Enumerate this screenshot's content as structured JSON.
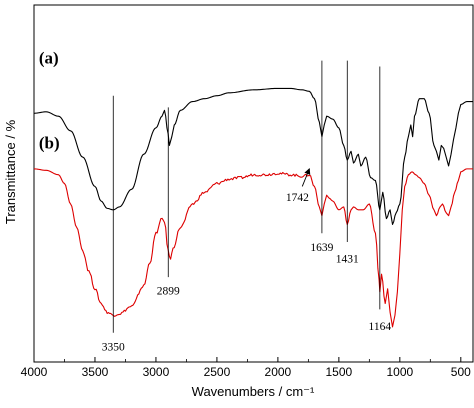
{
  "chart_data": {
    "type": "line",
    "xlabel": "Wavenumbers / cm⁻¹",
    "ylabel": "Transmittance / %",
    "xlim": [
      4000,
      400
    ],
    "x_reversed": true,
    "x_ticks": [
      4000,
      3500,
      3000,
      2500,
      2000,
      1500,
      1000,
      500
    ],
    "x_tick_labels": [
      "4000",
      "3500",
      "3000",
      "2500",
      "2000",
      "1500",
      "1000",
      "500"
    ],
    "y_tick_labels_shown": false,
    "grid": false,
    "series": [
      {
        "name": "(a)",
        "color": "#000000",
        "points": [
          [
            4000,
            63
          ],
          [
            3900,
            63.5
          ],
          [
            3800,
            62
          ],
          [
            3700,
            57
          ],
          [
            3600,
            48
          ],
          [
            3500,
            38
          ],
          [
            3450,
            33
          ],
          [
            3400,
            30.5
          ],
          [
            3350,
            30
          ],
          [
            3300,
            31
          ],
          [
            3200,
            37
          ],
          [
            3100,
            49
          ],
          [
            3000,
            58
          ],
          [
            2950,
            62
          ],
          [
            2930,
            64
          ],
          [
            2900,
            56
          ],
          [
            2890,
            52
          ],
          [
            2870,
            55
          ],
          [
            2850,
            59
          ],
          [
            2800,
            64
          ],
          [
            2700,
            67
          ],
          [
            2600,
            68
          ],
          [
            2500,
            69
          ],
          [
            2400,
            70
          ],
          [
            2200,
            71
          ],
          [
            2000,
            71.5
          ],
          [
            1900,
            71.5
          ],
          [
            1800,
            71
          ],
          [
            1742,
            70.5
          ],
          [
            1700,
            68
          ],
          [
            1660,
            60
          ],
          [
            1639,
            55
          ],
          [
            1620,
            59
          ],
          [
            1600,
            62
          ],
          [
            1550,
            61
          ],
          [
            1500,
            58
          ],
          [
            1460,
            52
          ],
          [
            1431,
            47
          ],
          [
            1400,
            50
          ],
          [
            1380,
            46
          ],
          [
            1340,
            49
          ],
          [
            1320,
            45
          ],
          [
            1280,
            48
          ],
          [
            1240,
            41
          ],
          [
            1200,
            40
          ],
          [
            1164,
            30
          ],
          [
            1140,
            36
          ],
          [
            1110,
            27
          ],
          [
            1080,
            30
          ],
          [
            1060,
            25
          ],
          [
            1030,
            29
          ],
          [
            1000,
            32
          ],
          [
            960,
            48
          ],
          [
            930,
            55
          ],
          [
            910,
            59
          ],
          [
            895,
            55
          ],
          [
            880,
            62
          ],
          [
            840,
            68
          ],
          [
            800,
            68
          ],
          [
            760,
            63
          ],
          [
            720,
            52
          ],
          [
            700,
            50
          ],
          [
            680,
            47
          ],
          [
            660,
            52
          ],
          [
            640,
            51
          ],
          [
            620,
            48
          ],
          [
            600,
            45
          ],
          [
            580,
            49
          ],
          [
            560,
            54
          ],
          [
            540,
            58
          ],
          [
            520,
            63
          ],
          [
            500,
            66
          ],
          [
            450,
            67
          ],
          [
            400,
            67
          ]
        ]
      },
      {
        "name": "(b)",
        "color": "#dd0000",
        "points": [
          [
            4000,
            44
          ],
          [
            3900,
            43.5
          ],
          [
            3800,
            42
          ],
          [
            3750,
            39
          ],
          [
            3700,
            32
          ],
          [
            3650,
            24
          ],
          [
            3600,
            16
          ],
          [
            3550,
            9
          ],
          [
            3500,
            3
          ],
          [
            3450,
            -2
          ],
          [
            3400,
            -5
          ],
          [
            3350,
            -6
          ],
          [
            3300,
            -5.5
          ],
          [
            3200,
            -3
          ],
          [
            3100,
            4
          ],
          [
            3050,
            12
          ],
          [
            3000,
            22
          ],
          [
            2950,
            27
          ],
          [
            2930,
            26
          ],
          [
            2900,
            16
          ],
          [
            2880,
            13
          ],
          [
            2860,
            17
          ],
          [
            2800,
            24
          ],
          [
            2700,
            32
          ],
          [
            2600,
            36
          ],
          [
            2500,
            39
          ],
          [
            2400,
            40.5
          ],
          [
            2300,
            41
          ],
          [
            2200,
            42
          ],
          [
            2100,
            42
          ],
          [
            2000,
            42.5
          ],
          [
            1900,
            42
          ],
          [
            1800,
            41.5
          ],
          [
            1742,
            42
          ],
          [
            1700,
            38
          ],
          [
            1660,
            31
          ],
          [
            1639,
            28
          ],
          [
            1620,
            32
          ],
          [
            1600,
            35
          ],
          [
            1580,
            34
          ],
          [
            1550,
            33
          ],
          [
            1500,
            30
          ],
          [
            1460,
            31
          ],
          [
            1431,
            25
          ],
          [
            1400,
            30
          ],
          [
            1380,
            31
          ],
          [
            1340,
            30
          ],
          [
            1300,
            30
          ],
          [
            1250,
            32
          ],
          [
            1200,
            22
          ],
          [
            1170,
            6
          ],
          [
            1164,
            2
          ],
          [
            1150,
            8
          ],
          [
            1120,
            -2
          ],
          [
            1100,
            3
          ],
          [
            1080,
            -5
          ],
          [
            1060,
            -10
          ],
          [
            1040,
            -6
          ],
          [
            1020,
            2
          ],
          [
            1000,
            15
          ],
          [
            980,
            30
          ],
          [
            960,
            38
          ],
          [
            930,
            42
          ],
          [
            900,
            43
          ],
          [
            870,
            42
          ],
          [
            840,
            41
          ],
          [
            800,
            39
          ],
          [
            760,
            35
          ],
          [
            720,
            30
          ],
          [
            700,
            28
          ],
          [
            670,
            31
          ],
          [
            650,
            32
          ],
          [
            620,
            29
          ],
          [
            600,
            28
          ],
          [
            580,
            31
          ],
          [
            550,
            36
          ],
          [
            520,
            40
          ],
          [
            500,
            43
          ],
          [
            450,
            44
          ],
          [
            400,
            44
          ]
        ]
      }
    ],
    "series_labels": [
      {
        "text": "(a)",
        "x": 3960,
        "y": 80
      },
      {
        "text": "(b)",
        "x": 3960,
        "y": 51
      }
    ],
    "peak_markers": [
      {
        "wavenumber": 3350,
        "label": "3350",
        "line_top": 69,
        "line_bottom": -12,
        "label_y": -18
      },
      {
        "wavenumber": 2899,
        "label": "2899",
        "line_top": 65,
        "line_bottom": 7,
        "label_y": 1
      },
      {
        "wavenumber": 1639,
        "label": "1639",
        "line_top": 81,
        "line_bottom": 22,
        "label_y": 16
      },
      {
        "wavenumber": 1431,
        "label": "1431",
        "line_top": 81,
        "line_bottom": 19,
        "label_y": 12
      },
      {
        "wavenumber": 1164,
        "label": "1164",
        "line_top": 79,
        "line_bottom": -4,
        "label_y": -11
      }
    ],
    "annotations": [
      {
        "label": "1742",
        "label_x": 1840,
        "label_y": 33,
        "arrow_from": [
          1800,
          38
        ],
        "arrow_to": [
          1742,
          44
        ]
      }
    ],
    "ylim": [
      -22,
      100
    ]
  }
}
